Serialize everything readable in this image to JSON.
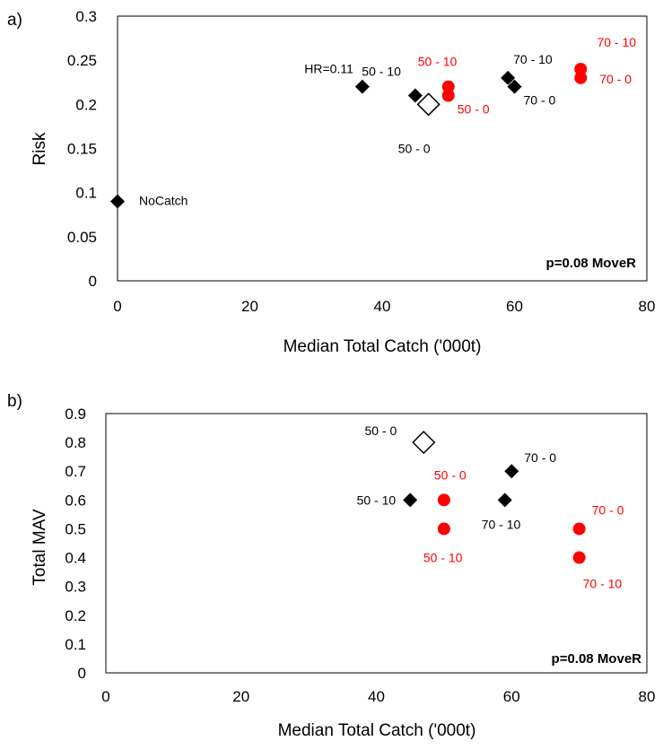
{
  "chart_data": [
    {
      "type": "scatter",
      "panel_label": "a)",
      "xlabel": "Median Total Catch ('000t)",
      "ylabel": "Risk",
      "xlim": [
        0,
        80
      ],
      "ylim": [
        0,
        0.3
      ],
      "x_ticks": [
        "0",
        "20",
        "40",
        "60",
        "80"
      ],
      "y_ticks": [
        "0",
        "0.05",
        "0.1",
        "0.15",
        "0.2",
        "0.25",
        "0.3"
      ],
      "annotation": "p=0.08 MoveR",
      "grid": false,
      "colors": {
        "black": "#000000",
        "red": "#ff0000"
      },
      "points": [
        {
          "x": 0,
          "y": 0.09,
          "marker": "diamond",
          "color": "black",
          "label": "NoCatch"
        },
        {
          "x": 37,
          "y": 0.22,
          "marker": "diamond",
          "color": "black",
          "label": "HR=0.11"
        },
        {
          "x": 45,
          "y": 0.21,
          "marker": "diamond",
          "color": "black",
          "label": "50 - 10"
        },
        {
          "x": 47,
          "y": 0.2,
          "marker": "diamond-open",
          "color": "black",
          "label": "50 - 0"
        },
        {
          "x": 59,
          "y": 0.23,
          "marker": "diamond",
          "color": "black",
          "label": "70 - 10"
        },
        {
          "x": 60,
          "y": 0.22,
          "marker": "diamond",
          "color": "black",
          "label": "70 - 0"
        },
        {
          "x": 50,
          "y": 0.22,
          "marker": "circle",
          "color": "red",
          "label": "50 - 10"
        },
        {
          "x": 50,
          "y": 0.21,
          "marker": "circle",
          "color": "red",
          "label": "50 - 0"
        },
        {
          "x": 70,
          "y": 0.24,
          "marker": "circle",
          "color": "red",
          "label": "70 - 10"
        },
        {
          "x": 70,
          "y": 0.23,
          "marker": "circle",
          "color": "red",
          "label": "70 - 0"
        }
      ]
    },
    {
      "type": "scatter",
      "panel_label": "b)",
      "xlabel": "Median Total Catch ('000t)",
      "ylabel": "Total MAV",
      "xlim": [
        0,
        80
      ],
      "ylim": [
        0,
        0.9
      ],
      "x_ticks": [
        "0",
        "20",
        "40",
        "60",
        "80"
      ],
      "y_ticks": [
        "0",
        "0.1",
        "0.2",
        "0.3",
        "0.4",
        "0.5",
        "0.6",
        "0.7",
        "0.8",
        "0.9"
      ],
      "annotation": "p=0.08 MoveR",
      "grid": false,
      "colors": {
        "black": "#000000",
        "red": "#ff0000"
      },
      "points": [
        {
          "x": 47,
          "y": 0.8,
          "marker": "diamond-open",
          "color": "black",
          "label": "50 - 0"
        },
        {
          "x": 45,
          "y": 0.6,
          "marker": "diamond",
          "color": "black",
          "label": "50 - 10"
        },
        {
          "x": 60,
          "y": 0.7,
          "marker": "diamond",
          "color": "black",
          "label": "70 - 0"
        },
        {
          "x": 59,
          "y": 0.6,
          "marker": "diamond",
          "color": "black",
          "label": "70 - 10"
        },
        {
          "x": 50,
          "y": 0.6,
          "marker": "circle",
          "color": "red",
          "label": "50 - 0"
        },
        {
          "x": 50,
          "y": 0.5,
          "marker": "circle",
          "color": "red",
          "label": "50 - 10"
        },
        {
          "x": 70,
          "y": 0.5,
          "marker": "circle",
          "color": "red",
          "label": "70 - 0"
        },
        {
          "x": 70,
          "y": 0.4,
          "marker": "circle",
          "color": "red",
          "label": "70 - 10"
        }
      ]
    }
  ]
}
